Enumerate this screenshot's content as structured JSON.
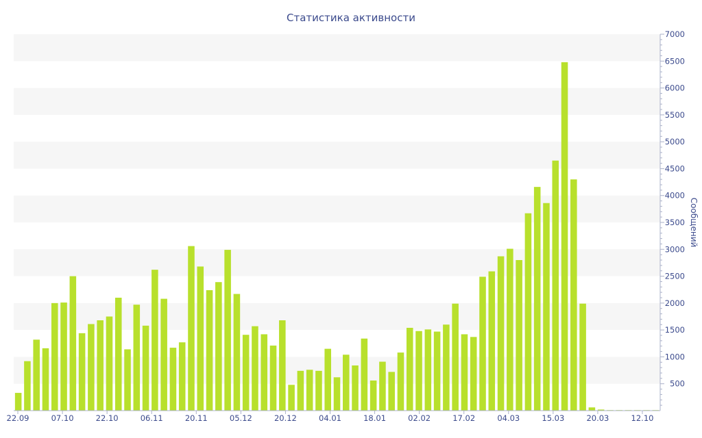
{
  "chart_data": {
    "type": "bar",
    "title": "Статистика активности",
    "xlabel": "",
    "ylabel": "Сообщений",
    "ylim": [
      0,
      7000
    ],
    "y_ticks": [
      500,
      1000,
      1500,
      2000,
      2500,
      3000,
      3500,
      4000,
      4500,
      5000,
      5500,
      6000,
      6500,
      7000
    ],
    "y_axis_position": "right",
    "grid": "alternating horizontal bands",
    "x_tick_labels": [
      "22.09",
      "07.10",
      "22.10",
      "06.11",
      "20.11",
      "05.12",
      "20.12",
      "04.01",
      "18.01",
      "02.02",
      "17.02",
      "04.03",
      "15.03",
      "20.03",
      "12.10"
    ],
    "bar_color": "#b8e02c",
    "band_color": "#f6f6f6",
    "text_color": "#3b4a8c",
    "series": [
      {
        "values": [
          330,
          920,
          1320,
          1160,
          2000,
          2010,
          2500,
          1440,
          1610,
          1680,
          1750,
          2100,
          1140,
          1970,
          1580,
          2620,
          2080,
          1170,
          1270,
          3060,
          2680,
          2240,
          2390,
          2990,
          2170,
          1410,
          1570,
          1420,
          1210,
          1680,
          480,
          740,
          760,
          740,
          1150,
          620,
          1040,
          840,
          1340,
          560,
          910,
          720,
          1080,
          1540,
          1480,
          1510,
          1470,
          1600,
          1990,
          1420,
          1370,
          2490,
          2590,
          2870,
          3010,
          2800,
          3670,
          4160,
          3860,
          4650,
          6480,
          4300,
          1990,
          60,
          20,
          10,
          10,
          10,
          10,
          10,
          10
        ]
      }
    ]
  }
}
